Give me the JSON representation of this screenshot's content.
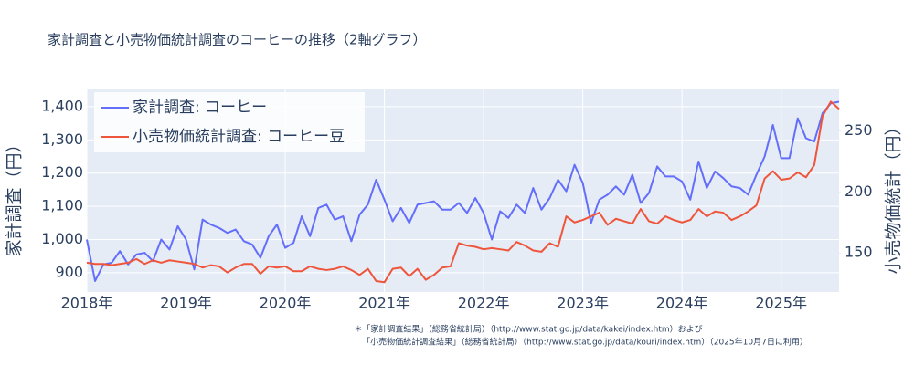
{
  "chart_data": {
    "type": "line",
    "title": "家計調査と小売物価統計調査のコーヒーの推移（2軸グラフ）",
    "y_label": "家計調査（円）",
    "y2_label": "小売物価統計（円）",
    "x": [
      "2018-01",
      "2018-02",
      "2018-03",
      "2018-04",
      "2018-05",
      "2018-06",
      "2018-07",
      "2018-08",
      "2018-09",
      "2018-10",
      "2018-11",
      "2018-12",
      "2019-01",
      "2019-02",
      "2019-03",
      "2019-04",
      "2019-05",
      "2019-06",
      "2019-07",
      "2019-08",
      "2019-09",
      "2019-10",
      "2019-11",
      "2019-12",
      "2020-01",
      "2020-02",
      "2020-03",
      "2020-04",
      "2020-05",
      "2020-06",
      "2020-07",
      "2020-08",
      "2020-09",
      "2020-10",
      "2020-11",
      "2020-12",
      "2021-01",
      "2021-02",
      "2021-03",
      "2021-04",
      "2021-05",
      "2021-06",
      "2021-07",
      "2021-08",
      "2021-09",
      "2021-10",
      "2021-11",
      "2021-12",
      "2022-01",
      "2022-02",
      "2022-03",
      "2022-04",
      "2022-05",
      "2022-06",
      "2022-07",
      "2022-08",
      "2022-09",
      "2022-10",
      "2022-11",
      "2022-12",
      "2023-01",
      "2023-02",
      "2023-03",
      "2023-04",
      "2023-05",
      "2023-06",
      "2023-07",
      "2023-08",
      "2023-09",
      "2023-10",
      "2023-11",
      "2023-12",
      "2024-01",
      "2024-02",
      "2024-03",
      "2024-04",
      "2024-05",
      "2024-06",
      "2024-07",
      "2024-08",
      "2024-09",
      "2024-10",
      "2024-11",
      "2024-12",
      "2025-01",
      "2025-02",
      "2025-03",
      "2025-04",
      "2025-05",
      "2025-06",
      "2025-07",
      "2025-08"
    ],
    "series": [
      {
        "name": "家計調査: コーヒー",
        "color": "#636efa",
        "axis": "y",
        "values": [
          1000,
          875,
          925,
          930,
          965,
          925,
          955,
          960,
          935,
          1000,
          970,
          1040,
          1000,
          910,
          1060,
          1045,
          1035,
          1020,
          1030,
          995,
          985,
          945,
          1010,
          1045,
          975,
          990,
          1070,
          1010,
          1095,
          1105,
          1060,
          1070,
          995,
          1075,
          1105,
          1180,
          1120,
          1055,
          1095,
          1050,
          1105,
          1110,
          1115,
          1090,
          1090,
          1110,
          1080,
          1125,
          1080,
          1000,
          1085,
          1065,
          1105,
          1080,
          1155,
          1090,
          1125,
          1180,
          1145,
          1225,
          1170,
          1050,
          1120,
          1135,
          1160,
          1135,
          1195,
          1110,
          1140,
          1220,
          1190,
          1190,
          1175,
          1120,
          1235,
          1155,
          1205,
          1185,
          1160,
          1155,
          1135,
          1195,
          1250,
          1345,
          1245,
          1245,
          1365,
          1305,
          1295,
          1380,
          1410,
          1415
        ]
      },
      {
        "name": "小売物価統計調査: コーヒー豆",
        "color": "#EF553B",
        "axis": "y2",
        "values": [
          142,
          141,
          141,
          140,
          141,
          142,
          145,
          141,
          144,
          142,
          144,
          143,
          142,
          141,
          138,
          140,
          139,
          134,
          138,
          141,
          141,
          133,
          139,
          138,
          139,
          135,
          135,
          139,
          137,
          136,
          137,
          139,
          136,
          132,
          137,
          127,
          126,
          137,
          138,
          131,
          137,
          128,
          132,
          138,
          139,
          158,
          156,
          155,
          153,
          154,
          153,
          152,
          159,
          156,
          152,
          151,
          158,
          155,
          180,
          175,
          177,
          180,
          183,
          173,
          178,
          176,
          174,
          186,
          176,
          174,
          180,
          177,
          175,
          177,
          186,
          180,
          184,
          183,
          177,
          180,
          184,
          189,
          211,
          217,
          210,
          211,
          216,
          212,
          222,
          262,
          274,
          268
        ]
      }
    ],
    "xlim": [
      "2018-01",
      "2025-08"
    ],
    "xticks": [
      {
        "value": "2018-01",
        "label": "2018年"
      },
      {
        "value": "2019-01",
        "label": "2019年"
      },
      {
        "value": "2020-01",
        "label": "2020年"
      },
      {
        "value": "2021-01",
        "label": "2021年"
      },
      {
        "value": "2022-01",
        "label": "2022年"
      },
      {
        "value": "2023-01",
        "label": "2023年"
      },
      {
        "value": "2024-01",
        "label": "2024年"
      },
      {
        "value": "2025-01",
        "label": "2025年"
      }
    ],
    "ylim": [
      842,
      1452
    ],
    "yticks": [
      900,
      {
        "value": 1000,
        "label": "1,000"
      },
      {
        "value": 1100,
        "label": "1,100"
      },
      {
        "value": 1200,
        "label": "1,200"
      },
      {
        "value": 1300,
        "label": "1,300"
      },
      {
        "value": 1400,
        "label": "1,400"
      }
    ],
    "y2lim": [
      118,
      284
    ],
    "y2ticks": [
      150,
      200,
      250
    ],
    "grid": true,
    "legend": "top-left",
    "annotations": [
      "＊「家計調査結果」（総務省統計局）（http://www.stat.go.jp/data/kakei/index.htm）および",
      "「小売物価統計調査結果」（総務省統計局）（http://www.stat.go.jp/data/kouri/index.htm）（2025年10月7日に利用）"
    ]
  }
}
